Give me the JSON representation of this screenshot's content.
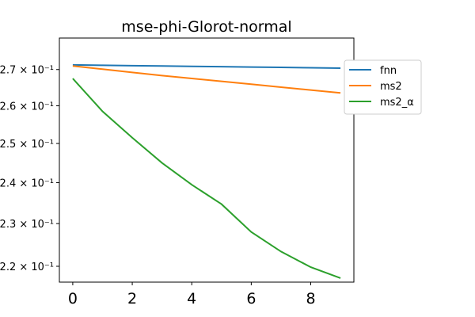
{
  "chart_data": {
    "type": "line",
    "title": "mse-phi-Glorot-normal",
    "xlabel": "",
    "ylabel": "",
    "y_scale": "log",
    "xlim": [
      -0.45,
      9.45
    ],
    "ylim": [
      0.2164,
      0.279
    ],
    "x_ticks": [
      0,
      2,
      4,
      6,
      8
    ],
    "x_tick_labels": [
      "0",
      "2",
      "4",
      "6",
      "8"
    ],
    "y_ticks": [
      0.22,
      0.23,
      0.24,
      0.25,
      0.26,
      0.27
    ],
    "y_tick_labels": [
      "2.2 × 10⁻¹",
      "2.3 × 10⁻¹",
      "2.4 × 10⁻¹",
      "2.5 × 10⁻¹",
      "2.6 × 10⁻¹",
      "2.7 × 10⁻¹"
    ],
    "grid": false,
    "legend": {
      "placement": "outside-right-top"
    },
    "x": [
      0,
      1,
      2,
      3,
      4,
      5,
      6,
      7,
      8,
      9
    ],
    "series": [
      {
        "name": "fnn",
        "color": "#1f77b4",
        "values": [
          0.2713,
          0.2712,
          0.2711,
          0.271,
          0.2709,
          0.2708,
          0.2707,
          0.2706,
          0.2705,
          0.2704
        ]
      },
      {
        "name": "ms2",
        "color": "#ff7f0e",
        "values": [
          0.271,
          0.2701,
          0.2692,
          0.2683,
          0.2675,
          0.2667,
          0.2659,
          0.2651,
          0.2643,
          0.2635
        ]
      },
      {
        "name": "ms2_α",
        "color": "#2ca02c",
        "values": [
          0.2675,
          0.2585,
          0.2515,
          0.245,
          0.2395,
          0.2347,
          0.228,
          0.2234,
          0.2198,
          0.2173
        ]
      }
    ]
  }
}
